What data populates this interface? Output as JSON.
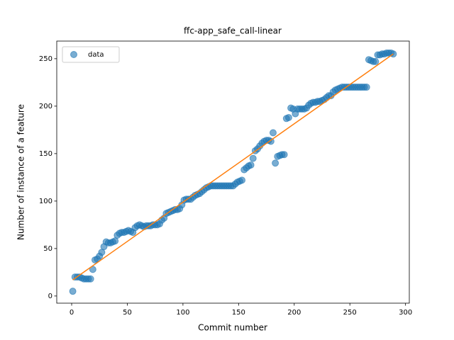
{
  "chart_data": {
    "type": "scatter",
    "title": "ffc-app_safe_call-linear",
    "xlabel": "Commit number",
    "ylabel": "Number of instance of a feature",
    "xlim": [
      -13.4,
      303.4
    ],
    "ylim": [
      -7.55,
      268.55
    ],
    "xticks": [
      0,
      50,
      100,
      150,
      200,
      250,
      300
    ],
    "yticks": [
      0,
      50,
      100,
      150,
      200,
      250
    ],
    "legend": "upper left",
    "series": [
      {
        "name": "data",
        "color": "#1f77b4",
        "x": [
          1,
          3,
          5,
          7,
          9,
          11,
          13,
          15,
          17,
          19,
          21,
          23,
          25,
          27,
          29,
          31,
          33,
          35,
          37,
          39,
          41,
          43,
          45,
          47,
          49,
          51,
          53,
          55,
          57,
          59,
          61,
          63,
          65,
          67,
          69,
          71,
          73,
          75,
          77,
          79,
          81,
          83,
          85,
          87,
          89,
          91,
          93,
          95,
          97,
          99,
          101,
          103,
          105,
          107,
          109,
          111,
          113,
          115,
          117,
          119,
          121,
          123,
          125,
          127,
          129,
          131,
          133,
          135,
          137,
          139,
          141,
          143,
          145,
          147,
          149,
          151,
          153,
          155,
          157,
          159,
          161,
          163,
          165,
          167,
          169,
          171,
          173,
          175,
          177,
          179,
          181,
          183,
          185,
          187,
          189,
          191,
          193,
          195,
          197,
          199,
          201,
          203,
          205,
          207,
          209,
          211,
          213,
          215,
          217,
          219,
          221,
          223,
          225,
          227,
          229,
          231,
          233,
          235,
          237,
          239,
          241,
          243,
          245,
          247,
          249,
          251,
          253,
          255,
          257,
          259,
          261,
          263,
          265,
          267,
          269,
          271,
          273,
          275,
          277,
          279,
          281,
          283,
          285,
          287,
          289
        ],
        "values": [
          5,
          20,
          20,
          20,
          19,
          18,
          18,
          18,
          18,
          28,
          38,
          39,
          42,
          46,
          52,
          57,
          56,
          56,
          57,
          58,
          64,
          66,
          67,
          67,
          68,
          69,
          68,
          67,
          72,
          74,
          75,
          74,
          73,
          74,
          74,
          74,
          75,
          75,
          75,
          76,
          80,
          82,
          87,
          88,
          89,
          90,
          91,
          91,
          92,
          96,
          101,
          102,
          102,
          102,
          104,
          106,
          107,
          108,
          110,
          112,
          114,
          115,
          116,
          116,
          116,
          116,
          116,
          116,
          116,
          116,
          116,
          116,
          116,
          118,
          120,
          121,
          122,
          133,
          135,
          137,
          138,
          145,
          153,
          155,
          158,
          161,
          163,
          164,
          164,
          163,
          172,
          140,
          147,
          148,
          149,
          149,
          187,
          188,
          198,
          197,
          192,
          197,
          197,
          197,
          197,
          198,
          201,
          203,
          204,
          204,
          205,
          205,
          206,
          207,
          209,
          211,
          211,
          215,
          217,
          218,
          219,
          220,
          220,
          220,
          220,
          220,
          220,
          220,
          220,
          220,
          220,
          220,
          220,
          249,
          248,
          247,
          247,
          254,
          254,
          255,
          255,
          256,
          256,
          256,
          255
        ]
      },
      {
        "color": "#ff7f0e",
        "x": [
          1,
          289
        ],
        "values": [
          17,
          255
        ]
      }
    ]
  }
}
